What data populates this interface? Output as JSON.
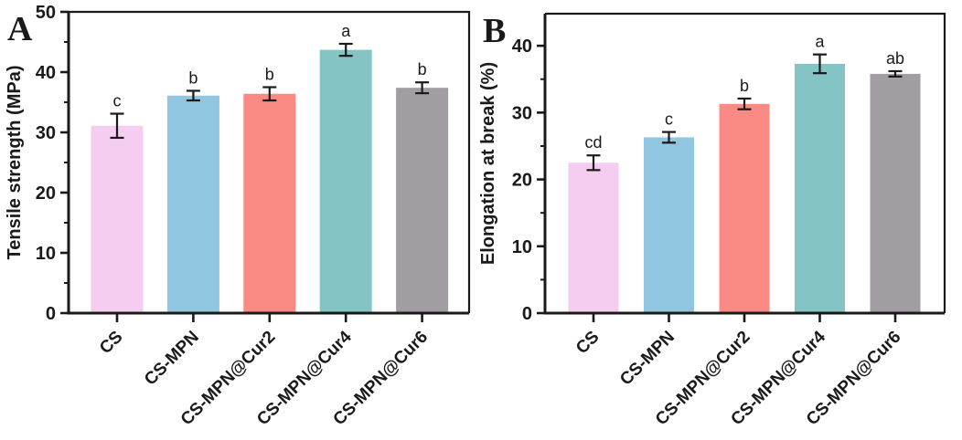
{
  "figure": {
    "background": "#ffffff",
    "axis_color": "#1a1a1a",
    "error_bar_color": "#1a1a1a",
    "bar_colors": [
      "#f5cdf1",
      "#90c6e0",
      "#fb8a84",
      "#85c4c4",
      "#a19da2"
    ]
  },
  "chart_data": [
    {
      "type": "bar",
      "panel_label": "A",
      "ylabel": "Tensile strength (MPa)",
      "xlabel": "",
      "categories": [
        "CS",
        "CS-MPN",
        "CS-MPN@Cur2",
        "CS-MPN@Cur4",
        "CS-MPN@Cur6"
      ],
      "values": [
        31.1,
        36.1,
        36.4,
        43.7,
        37.4
      ],
      "errors": [
        2.0,
        0.8,
        1.1,
        1.0,
        0.9
      ],
      "sig_labels": [
        "c",
        "b",
        "b",
        "a",
        "b"
      ],
      "ylim": [
        0,
        50
      ],
      "ytick_major": 10,
      "ytick_minor": 5,
      "grid": false,
      "legend": "none"
    },
    {
      "type": "bar",
      "panel_label": "B",
      "ylabel": "Elongation at break (%)",
      "xlabel": "",
      "categories": [
        "CS",
        "CS-MPN",
        "CS-MPN@Cur2",
        "CS-MPN@Cur4",
        "CS-MPN@Cur6"
      ],
      "values": [
        22.5,
        26.3,
        31.3,
        37.3,
        35.8
      ],
      "errors": [
        1.1,
        0.8,
        0.8,
        1.4,
        0.4
      ],
      "sig_labels": [
        "cd",
        "c",
        "b",
        "a",
        "ab"
      ],
      "ylim": [
        0,
        44.8
      ],
      "ytick_major": 10,
      "ytick_minor": 5,
      "grid": false,
      "legend": "none"
    }
  ]
}
